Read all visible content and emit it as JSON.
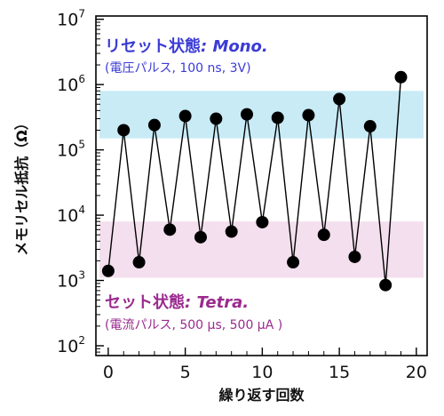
{
  "chart_data": {
    "type": "line",
    "xlabel": "繰り返す回数",
    "ylabel": "メモリセル抵抗（Ω）",
    "xlim": [
      -0.8,
      20.7
    ],
    "ylim_log10": [
      1.85,
      7.05
    ],
    "yscale": "log",
    "x_ticks": [
      0,
      5,
      10,
      15,
      20
    ],
    "x_minor_step": 1,
    "y_tick_exponents": [
      2,
      3,
      4,
      5,
      6,
      7
    ],
    "y_tick_base": "10",
    "grid": false,
    "series": [
      {
        "x": [
          0,
          1,
          2,
          3,
          4,
          5,
          6,
          7,
          8,
          9,
          10,
          11,
          12,
          13,
          14,
          15,
          16,
          17,
          18,
          19
        ],
        "y": [
          1400,
          200000,
          1900,
          240000,
          6000,
          330000,
          4600,
          300000,
          5600,
          350000,
          7800,
          310000,
          1900,
          340000,
          5000,
          600000,
          2300,
          230000,
          850,
          1300000
        ],
        "color": "#000000"
      }
    ],
    "bands": [
      {
        "y_range": [
          150000,
          800000
        ],
        "color": "#c8ebf6"
      },
      {
        "y_range": [
          1100,
          8000
        ],
        "color": "#f4dfee"
      }
    ],
    "annotations": [
      {
        "title": "リセット状態",
        "title_suffix": ": Mono.",
        "subtitle": "(電圧パルス, 100 ns, 3V)",
        "color": "#3b3bd6"
      },
      {
        "title": "セット状態",
        "title_suffix": ": Tetra.",
        "subtitle": "(電流パルス, 500 µs, 500 µA )",
        "color": "#9b2a8e"
      }
    ]
  }
}
